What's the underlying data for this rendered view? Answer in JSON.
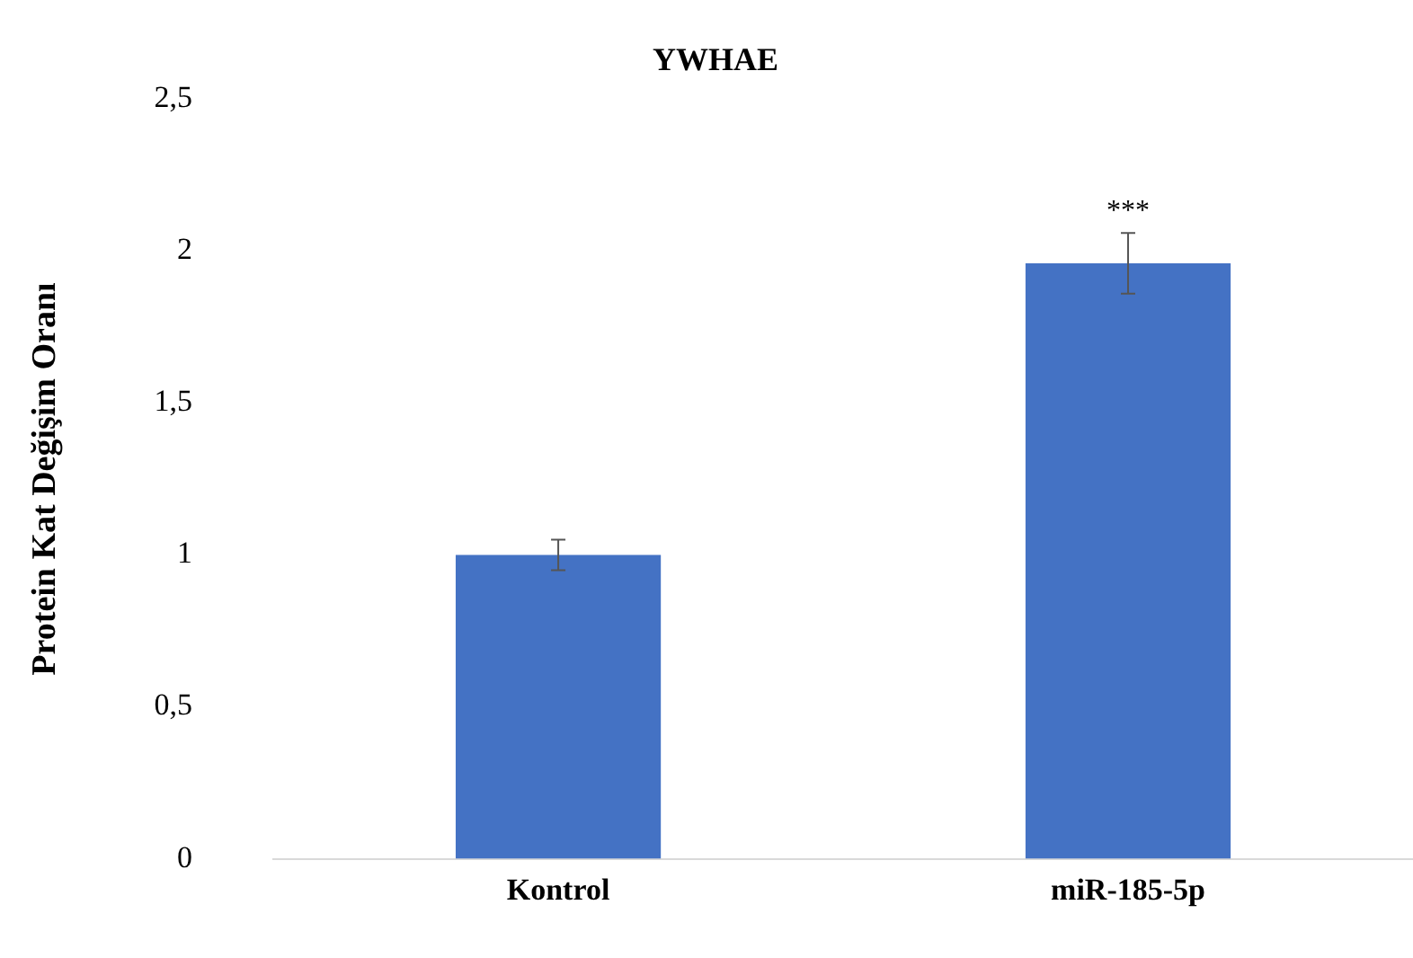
{
  "chart_data": {
    "type": "bar",
    "title": "YWHAE",
    "ylabel": "Protein Kat Değişim Oranı",
    "categories": [
      "Kontrol",
      "miR-185-5p"
    ],
    "values": [
      1.0,
      1.96
    ],
    "errors": [
      0.05,
      0.1
    ],
    "color": "#4472c4",
    "ylim": [
      0,
      2.5
    ],
    "yticks": [
      0,
      {
        "value": 0.5,
        "label": "0,5"
      },
      1,
      {
        "value": 1.5,
        "label": "1,5"
      },
      2,
      {
        "value": 2.5,
        "label": "2,5"
      }
    ],
    "grid": false,
    "legend": false,
    "annotations": [
      {
        "text": "***",
        "x": "miR-185-5p",
        "y": 2.06
      }
    ]
  }
}
